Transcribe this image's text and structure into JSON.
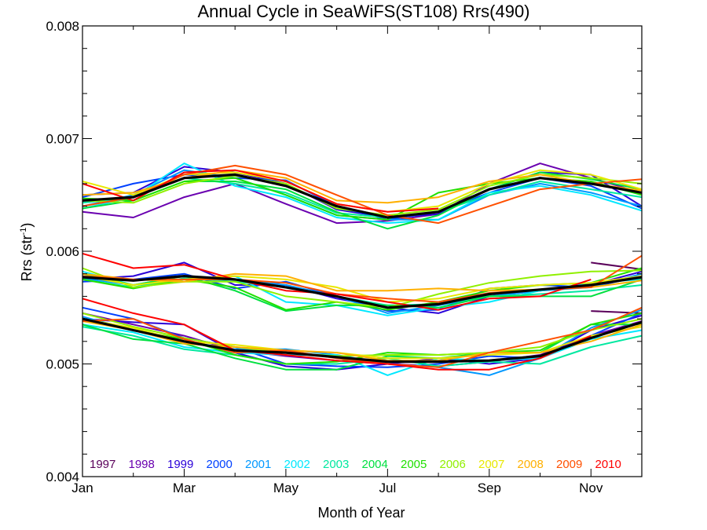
{
  "chart_data": {
    "type": "line",
    "title": "Annual Cycle in SeaWiFS(ST108) Rrs(490)",
    "xlabel": "Month of Year",
    "ylabel": "Rrs (str",
    "ylabel_sup": "-1",
    "ylabel_close": ")",
    "xlim": [
      1,
      12
    ],
    "ylim": [
      0.004,
      0.008
    ],
    "x_ticks": [
      1,
      3,
      5,
      7,
      9,
      11
    ],
    "x_tick_labels": [
      "Jan",
      "Mar",
      "May",
      "Jul",
      "Sep",
      "Nov"
    ],
    "y_ticks": [
      0.004,
      0.005,
      0.006,
      0.007,
      0.008
    ],
    "y_tick_labels": [
      "0.004",
      "0.005",
      "0.006",
      "0.007",
      "0.008"
    ],
    "grid": false,
    "legend_position": "bottom, inside plot",
    "legend": [
      {
        "label": "1997",
        "color": "#5a005a"
      },
      {
        "label": "1998",
        "color": "#6a00b0"
      },
      {
        "label": "1999",
        "color": "#2a00d8"
      },
      {
        "label": "2000",
        "color": "#0040ff"
      },
      {
        "label": "2001",
        "color": "#0098ff"
      },
      {
        "label": "2002",
        "color": "#00e8ff"
      },
      {
        "label": "2003",
        "color": "#00e8a0"
      },
      {
        "label": "2004",
        "color": "#00e040"
      },
      {
        "label": "2005",
        "color": "#20e000"
      },
      {
        "label": "2006",
        "color": "#90f000"
      },
      {
        "label": "2007",
        "color": "#e8e800"
      },
      {
        "label": "2008",
        "color": "#ffb000"
      },
      {
        "label": "2009",
        "color": "#ff5000"
      },
      {
        "label": "2010",
        "color": "#ff0000"
      }
    ],
    "groups": [
      {
        "name": "upper",
        "mean": [
          0.00645,
          0.00648,
          0.00665,
          0.00668,
          0.00658,
          0.0064,
          0.0063,
          0.00635,
          0.00655,
          0.00665,
          0.0066,
          0.00652
        ],
        "series": [
          {
            "year": "1998",
            "values": [
              0.00635,
              0.0063,
              0.00648,
              0.0066,
              0.00642,
              0.00625,
              0.00627,
              0.00633,
              0.0066,
              0.00678,
              0.00665,
              0.00652
            ]
          },
          {
            "year": "1999",
            "values": [
              0.0065,
              0.00652,
              0.00675,
              0.0067,
              0.0066,
              0.00637,
              0.0063,
              0.00633,
              0.00655,
              0.0067,
              0.00668,
              0.0064
            ]
          },
          {
            "year": "2000",
            "values": [
              0.00648,
              0.0066,
              0.00668,
              0.00665,
              0.00663,
              0.0064,
              0.00628,
              0.00635,
              0.00652,
              0.00665,
              0.00658,
              0.00638
            ]
          },
          {
            "year": "2001",
            "values": [
              0.0064,
              0.0065,
              0.00672,
              0.00665,
              0.0065,
              0.00632,
              0.00628,
              0.00628,
              0.0065,
              0.0066,
              0.00652,
              0.0064
            ]
          },
          {
            "year": "2002",
            "values": [
              0.00638,
              0.00648,
              0.00678,
              0.00658,
              0.00648,
              0.0063,
              0.00625,
              0.00628,
              0.00652,
              0.00658,
              0.0065,
              0.00636
            ]
          },
          {
            "year": "2003",
            "values": [
              0.00643,
              0.00648,
              0.00665,
              0.0066,
              0.00652,
              0.00634,
              0.0063,
              0.00635,
              0.0065,
              0.00662,
              0.00655,
              0.00648
            ]
          },
          {
            "year": "2004",
            "values": [
              0.00638,
              0.00645,
              0.00662,
              0.00662,
              0.00655,
              0.00635,
              0.0062,
              0.00632,
              0.00655,
              0.0067,
              0.00664,
              0.00655
            ]
          },
          {
            "year": "2005",
            "values": [
              0.00647,
              0.00645,
              0.00662,
              0.00665,
              0.0065,
              0.00632,
              0.00628,
              0.00652,
              0.0066,
              0.00665,
              0.00662,
              0.0065
            ]
          },
          {
            "year": "2006",
            "values": [
              0.00645,
              0.00643,
              0.0066,
              0.00667,
              0.0066,
              0.00638,
              0.00632,
              0.00637,
              0.00658,
              0.00668,
              0.00665,
              0.0066
            ]
          },
          {
            "year": "2007",
            "values": [
              0.00662,
              0.0065,
              0.00668,
              0.0067,
              0.00662,
              0.00642,
              0.00635,
              0.0064,
              0.0066,
              0.00672,
              0.00668,
              0.00655
            ]
          },
          {
            "year": "2008",
            "values": [
              0.0065,
              0.00652,
              0.00665,
              0.00672,
              0.00665,
              0.00645,
              0.00643,
              0.00648,
              0.00662,
              0.00668,
              0.0066,
              0.00654
            ]
          },
          {
            "year": "2009",
            "values": [
              0.0064,
              0.00648,
              0.00668,
              0.00676,
              0.00668,
              0.0065,
              0.00632,
              0.00625,
              0.0064,
              0.00655,
              0.0066,
              0.00664
            ]
          },
          {
            "year": "2010",
            "values": [
              0.0066,
              0.00645,
              0.0067,
              0.00672,
              0.00662,
              0.00642,
              0.00635,
              0.00638,
              null,
              null,
              null,
              null
            ]
          }
        ]
      },
      {
        "name": "middle",
        "mean": [
          0.00577,
          0.00574,
          0.00578,
          0.00575,
          0.00568,
          0.0056,
          0.0055,
          0.00553,
          0.00562,
          0.00566,
          0.0057,
          0.00577
        ],
        "series": [
          {
            "year": "1997",
            "values": [
              null,
              null,
              null,
              null,
              null,
              null,
              null,
              null,
              null,
              null,
              0.0059,
              0.00584
            ]
          },
          {
            "year": "1999",
            "values": [
              0.00575,
              0.00578,
              0.0059,
              0.0057,
              0.0057,
              0.00558,
              0.0055,
              0.00545,
              0.0056,
              0.00565,
              0.0057,
              0.00582
            ]
          },
          {
            "year": "2000",
            "values": [
              0.00573,
              0.00575,
              0.0058,
              0.00567,
              0.00573,
              0.0056,
              0.00547,
              0.00548,
              0.00567,
              0.0057,
              0.00568,
              0.00578
            ]
          },
          {
            "year": "2001",
            "values": [
              0.00576,
              0.0057,
              0.00578,
              0.00575,
              0.0057,
              0.0056,
              0.00545,
              0.00552,
              0.0056,
              0.00565,
              0.00568,
              0.0058
            ]
          },
          {
            "year": "2002",
            "values": [
              0.00582,
              0.0057,
              0.00575,
              0.00578,
              0.00555,
              0.00552,
              0.00543,
              0.0055,
              0.00555,
              0.00565,
              0.00572,
              0.00575
            ]
          },
          {
            "year": "2003",
            "values": [
              0.00575,
              0.00568,
              0.00576,
              0.00573,
              0.00568,
              0.0056,
              0.00552,
              0.00553,
              0.0056,
              0.00562,
              0.00565,
              0.0057
            ]
          },
          {
            "year": "2004",
            "values": [
              0.0058,
              0.0057,
              0.00578,
              0.00565,
              0.00547,
              0.00552,
              0.00552,
              0.0055,
              0.0056,
              0.0056,
              0.0056,
              0.00575
            ]
          },
          {
            "year": "2005",
            "values": [
              0.00575,
              0.00567,
              0.00575,
              0.00568,
              0.00548,
              0.00555,
              0.00548,
              0.00555,
              0.00565,
              0.0057,
              0.00572,
              0.00585
            ]
          },
          {
            "year": "2006",
            "values": [
              0.00585,
              0.00568,
              0.00573,
              0.00573,
              0.0056,
              0.00555,
              0.0055,
              0.00562,
              0.00572,
              0.00578,
              0.00582,
              0.00583
            ]
          },
          {
            "year": "2007",
            "values": [
              0.00578,
              0.0057,
              0.00575,
              0.00578,
              0.00575,
              0.00568,
              0.00555,
              0.00558,
              0.00567,
              0.0057,
              0.00572,
              0.00578
            ]
          },
          {
            "year": "2008",
            "values": [
              0.0058,
              0.00575,
              0.00573,
              0.0058,
              0.00578,
              0.00565,
              0.00565,
              0.00567,
              0.00565,
              0.00566,
              0.00568,
              0.00574
            ]
          },
          {
            "year": "2009",
            "values": [
              0.00578,
              0.00575,
              0.00575,
              0.00575,
              0.00572,
              0.00562,
              0.00558,
              0.00555,
              0.00563,
              0.00566,
              0.00568,
              0.00596
            ]
          },
          {
            "year": "2010",
            "values": [
              0.00598,
              0.00585,
              0.00588,
              0.00575,
              0.00565,
              0.00562,
              0.00555,
              0.00548,
              0.00558,
              0.0056,
              0.00575,
              null
            ]
          }
        ]
      },
      {
        "name": "lower",
        "mean": [
          0.0054,
          0.0053,
          0.0052,
          0.00512,
          0.0051,
          0.00506,
          0.00502,
          0.00502,
          0.00503,
          0.00507,
          0.00523,
          0.00537
        ],
        "series": [
          {
            "year": "1997",
            "values": [
              null,
              null,
              null,
              null,
              null,
              null,
              null,
              null,
              null,
              null,
              0.00547,
              0.00545
            ]
          },
          {
            "year": "1998",
            "values": [
              0.00545,
              0.00535,
              0.00525,
              0.00512,
              0.00507,
              0.00503,
              0.005,
              0.00498,
              0.00502,
              0.00508,
              0.00525,
              0.00538
            ]
          },
          {
            "year": "1999",
            "values": [
              0.0054,
              0.00537,
              0.00535,
              0.0051,
              0.00498,
              0.00495,
              0.005,
              0.00505,
              0.005,
              0.00505,
              0.0053,
              0.00543
            ]
          },
          {
            "year": "2000",
            "values": [
              0.0055,
              0.0054,
              0.00523,
              0.00515,
              0.005,
              0.00498,
              0.00497,
              0.005,
              0.00507,
              0.00505,
              0.00525,
              0.00545
            ]
          },
          {
            "year": "2001",
            "values": [
              0.00542,
              0.0053,
              0.0052,
              0.00513,
              0.00513,
              0.00508,
              0.005,
              0.00497,
              0.0049,
              0.00505,
              0.00532,
              0.00548
            ]
          },
          {
            "year": "2002",
            "values": [
              0.00535,
              0.00528,
              0.00515,
              0.0051,
              0.00508,
              0.00508,
              0.0049,
              0.00505,
              0.00503,
              0.00505,
              0.00522,
              0.0053
            ]
          },
          {
            "year": "2003",
            "values": [
              0.00533,
              0.00525,
              0.00513,
              0.00508,
              0.005,
              0.005,
              0.00505,
              0.00498,
              0.00502,
              0.005,
              0.00515,
              0.00525
            ]
          },
          {
            "year": "2004",
            "values": [
              0.00535,
              0.00522,
              0.00518,
              0.00505,
              0.00495,
              0.00495,
              0.00507,
              0.00505,
              0.0051,
              0.0051,
              0.00535,
              0.00535
            ]
          },
          {
            "year": "2005",
            "values": [
              0.0054,
              0.0053,
              0.00522,
              0.00508,
              0.005,
              0.00502,
              0.0051,
              0.00508,
              0.0051,
              0.00512,
              0.00535,
              0.00545
            ]
          },
          {
            "year": "2006",
            "values": [
              0.00545,
              0.00533,
              0.00523,
              0.00515,
              0.0051,
              0.00507,
              0.00508,
              0.00508,
              0.0051,
              0.00515,
              0.0053,
              0.0054
            ]
          },
          {
            "year": "2007",
            "values": [
              0.0054,
              0.00532,
              0.0052,
              0.00517,
              0.00512,
              0.0051,
              0.00505,
              0.00505,
              0.00508,
              0.0051,
              0.00525,
              0.00533
            ]
          },
          {
            "year": "2008",
            "values": [
              0.00538,
              0.0053,
              0.00518,
              0.00515,
              0.00512,
              0.0051,
              0.00503,
              0.00503,
              0.0051,
              0.0051,
              0.0052,
              0.00535
            ]
          },
          {
            "year": "2009",
            "values": [
              0.00538,
              0.0054,
              0.00522,
              0.0051,
              0.00512,
              0.00505,
              0.005,
              0.00497,
              0.0051,
              0.0052,
              0.0053,
              0.0055
            ]
          },
          {
            "year": "2010",
            "values": [
              0.00558,
              0.00545,
              0.00535,
              0.00512,
              0.00508,
              0.00503,
              0.005,
              0.00495,
              0.00495,
              0.00505,
              0.00525,
              null
            ]
          }
        ]
      }
    ]
  }
}
